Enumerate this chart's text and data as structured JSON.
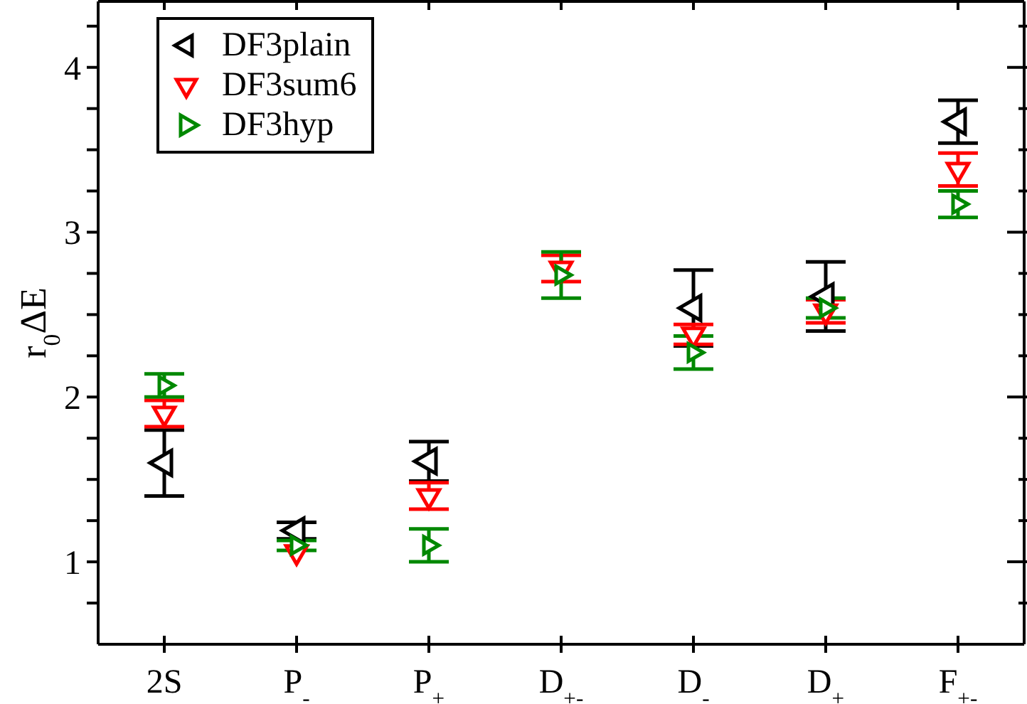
{
  "chart_data": {
    "type": "scatter",
    "ylabel": "r$_{0}$ΔE",
    "categories": [
      "2S",
      "P$_{-}$",
      "P$_{+}$",
      "D$_{+-}$",
      "D$_{-}$",
      "D$_{+}$",
      "F$_{+-}$"
    ],
    "ylim": [
      0.5,
      4.4
    ],
    "yticks": [
      {
        "value": 0.75,
        "label": null
      },
      1,
      {
        "value": 1.25,
        "label": null
      },
      {
        "value": 1.5,
        "label": null
      },
      {
        "value": 1.75,
        "label": null
      },
      2,
      {
        "value": 2.25,
        "label": null
      },
      {
        "value": 2.5,
        "label": null
      },
      {
        "value": 2.75,
        "label": null
      },
      3,
      {
        "value": 3.25,
        "label": null
      },
      {
        "value": 3.5,
        "label": null
      },
      {
        "value": 3.75,
        "label": null
      },
      4,
      {
        "value": 4.25,
        "label": null
      }
    ],
    "legend": "top left",
    "grid": false,
    "series": [
      {
        "name": "DF3plain",
        "color": "#000000",
        "marker": "triangle",
        "values": [
          1.6,
          1.19,
          1.61,
          null,
          2.54,
          2.61,
          3.67
        ],
        "errors": [
          0.2,
          0.05,
          0.12,
          null,
          0.23,
          0.21,
          0.13
        ]
      },
      {
        "name": "DF3sum6",
        "color": "#ff0000",
        "marker": "triangle",
        "values": [
          1.9,
          1.06,
          1.4,
          2.78,
          2.38,
          2.52,
          3.38
        ],
        "errors": [
          0.08,
          null,
          0.08,
          0.08,
          0.06,
          0.07,
          0.1
        ]
      },
      {
        "name": "DF3hyp",
        "color": "#008800",
        "marker": "triangle",
        "values": [
          2.07,
          1.1,
          1.1,
          2.74,
          2.27,
          2.54,
          3.17
        ],
        "errors": [
          0.07,
          0.03,
          0.1,
          0.14,
          0.1,
          0.06,
          0.08
        ]
      }
    ]
  }
}
